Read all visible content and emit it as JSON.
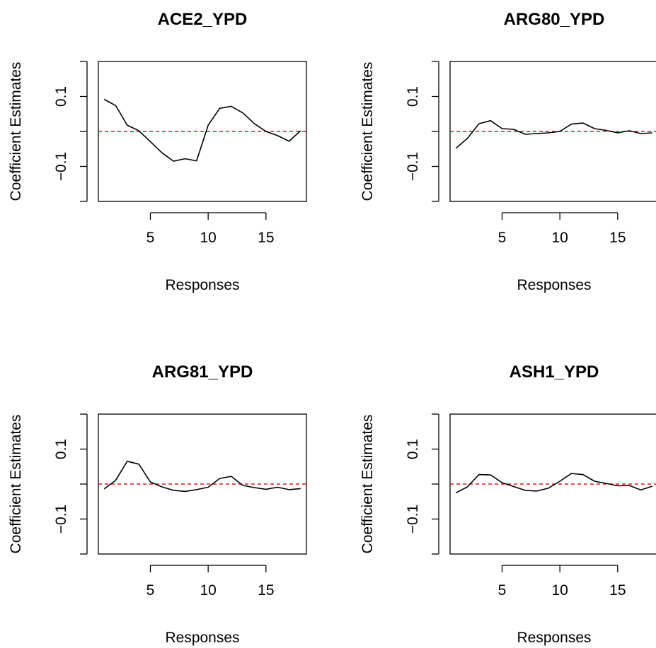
{
  "chart_data": [
    {
      "type": "line",
      "title": "ACE2_YPD",
      "xlabel": "Responses",
      "ylabel": "Coefficient Estimates",
      "xlim": [
        0.5,
        18.5
      ],
      "ylim": [
        -0.2,
        0.2
      ],
      "x_ticks": [
        "5",
        "10",
        "15"
      ],
      "y_ticks": [
        "-0.1",
        "0.1"
      ],
      "reference_line": {
        "y": 0,
        "color": "#e0161c",
        "style": "dashed"
      },
      "series": [
        {
          "x": [
            1,
            2,
            3,
            4,
            5,
            6,
            7,
            8,
            9,
            10,
            11,
            12,
            13,
            14,
            15,
            16,
            17,
            18
          ],
          "values": [
            0.092,
            0.074,
            0.018,
            0.002,
            -0.029,
            -0.061,
            -0.085,
            -0.078,
            -0.084,
            0.018,
            0.066,
            0.072,
            0.053,
            0.022,
            0.0,
            -0.012,
            -0.028,
            0.002
          ]
        }
      ]
    },
    {
      "type": "line",
      "title": "ARG80_YPD",
      "xlabel": "Responses",
      "ylabel": "Coefficient Estimates",
      "xlim": [
        0.5,
        18.5
      ],
      "ylim": [
        -0.2,
        0.2
      ],
      "x_ticks": [
        "5",
        "10",
        "15"
      ],
      "y_ticks": [
        "-0.1",
        "0.1"
      ],
      "reference_line": {
        "y": 0,
        "color": "#e0161c",
        "style": "dashed"
      },
      "series": [
        {
          "x": [
            1,
            2,
            3,
            4,
            5,
            6,
            7,
            8,
            9,
            10,
            11,
            12,
            13,
            14,
            15,
            16,
            17,
            18
          ],
          "values": [
            -0.048,
            -0.02,
            0.022,
            0.031,
            0.008,
            0.006,
            -0.008,
            -0.006,
            -0.004,
            0.0,
            0.021,
            0.024,
            0.008,
            0.003,
            -0.004,
            0.002,
            -0.006,
            -0.004
          ]
        }
      ]
    },
    {
      "type": "line",
      "title": "ARG81_YPD",
      "xlabel": "Responses",
      "ylabel": "Coefficient Estimates",
      "xlim": [
        0.5,
        18.5
      ],
      "ylim": [
        -0.2,
        0.2
      ],
      "x_ticks": [
        "5",
        "10",
        "15"
      ],
      "y_ticks": [
        "-0.1",
        "0.1"
      ],
      "reference_line": {
        "y": 0,
        "color": "#e0161c",
        "style": "dashed"
      },
      "series": [
        {
          "x": [
            1,
            2,
            3,
            4,
            5,
            6,
            7,
            8,
            9,
            10,
            11,
            12,
            13,
            14,
            15,
            16,
            17,
            18
          ],
          "values": [
            -0.014,
            0.011,
            0.065,
            0.057,
            0.006,
            -0.008,
            -0.018,
            -0.021,
            -0.016,
            -0.009,
            0.016,
            0.022,
            -0.004,
            -0.01,
            -0.015,
            -0.009,
            -0.016,
            -0.013
          ]
        }
      ]
    },
    {
      "type": "line",
      "title": "ASH1_YPD",
      "xlabel": "Responses",
      "ylabel": "Coefficient Estimates",
      "xlim": [
        0.5,
        18.5
      ],
      "ylim": [
        -0.2,
        0.2
      ],
      "x_ticks": [
        "5",
        "10",
        "15"
      ],
      "y_ticks": [
        "-0.1",
        "0.1"
      ],
      "reference_line": {
        "y": 0,
        "color": "#e0161c",
        "style": "dashed"
      },
      "series": [
        {
          "x": [
            1,
            2,
            3,
            4,
            5,
            6,
            7,
            8,
            9,
            10,
            11,
            12,
            13,
            14,
            15,
            16,
            17,
            18
          ],
          "values": [
            -0.025,
            -0.008,
            0.027,
            0.026,
            0.004,
            -0.007,
            -0.018,
            -0.02,
            -0.012,
            0.008,
            0.03,
            0.027,
            0.008,
            0.002,
            -0.005,
            -0.004,
            -0.017,
            -0.006
          ]
        }
      ]
    }
  ]
}
